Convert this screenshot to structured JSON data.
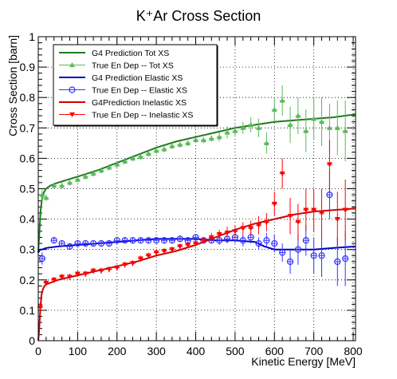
{
  "chart_data": {
    "type": "scatter",
    "title": "K⁺Ar Cross Section",
    "xlabel": "Kinetic Energy [MeV]",
    "ylabel": "Cross Section [barn]",
    "xlim": [
      0,
      806
    ],
    "ylim": [
      0,
      1
    ],
    "x_ticks": [
      "0",
      "100",
      "200",
      "300",
      "400",
      "500",
      "600",
      "700",
      "800"
    ],
    "y_ticks": [
      "0",
      "0.1",
      "0.2",
      "0.3",
      "0.4",
      "0.5",
      "0.6",
      "0.7",
      "0.8",
      "0.9",
      "1"
    ],
    "grid": true,
    "legend_position": "top-left",
    "series": [
      {
        "name": "G4 Prediction Tot XS",
        "kind": "line",
        "color": "#1e7a1e",
        "x": [
          0,
          3,
          6,
          10,
          15,
          20,
          30,
          50,
          100,
          150,
          200,
          250,
          300,
          350,
          400,
          450,
          500,
          550,
          600,
          650,
          700,
          750,
          806
        ],
        "y": [
          0.29,
          0.36,
          0.43,
          0.47,
          0.49,
          0.5,
          0.51,
          0.52,
          0.54,
          0.56,
          0.585,
          0.61,
          0.635,
          0.655,
          0.67,
          0.685,
          0.7,
          0.71,
          0.72,
          0.725,
          0.73,
          0.735,
          0.745
        ]
      },
      {
        "name": "True En Dep -- Tot XS",
        "kind": "points",
        "marker": "triangle-up",
        "color": "#5cb85c",
        "x": [
          10,
          20,
          40,
          60,
          80,
          100,
          120,
          140,
          160,
          180,
          200,
          220,
          240,
          260,
          280,
          300,
          320,
          340,
          360,
          380,
          400,
          420,
          440,
          460,
          480,
          500,
          520,
          540,
          560,
          580,
          600,
          620,
          640,
          660,
          680,
          700,
          720,
          740,
          760,
          780
        ],
        "y": [
          0.48,
          0.47,
          0.51,
          0.51,
          0.52,
          0.53,
          0.54,
          0.55,
          0.56,
          0.57,
          0.58,
          0.59,
          0.6,
          0.605,
          0.615,
          0.625,
          0.63,
          0.64,
          0.645,
          0.65,
          0.66,
          0.66,
          0.665,
          0.67,
          0.685,
          0.69,
          0.7,
          0.71,
          0.7,
          0.65,
          0.76,
          0.79,
          0.71,
          0.74,
          0.69,
          0.73,
          0.72,
          0.7,
          0.7,
          0.69
        ],
        "err": [
          0.02,
          0.01,
          0.01,
          0.01,
          0.01,
          0.01,
          0.01,
          0.01,
          0.01,
          0.01,
          0.01,
          0.01,
          0.01,
          0.01,
          0.01,
          0.01,
          0.01,
          0.01,
          0.01,
          0.01,
          0.01,
          0.01,
          0.01,
          0.015,
          0.02,
          0.02,
          0.02,
          0.025,
          0.03,
          0.035,
          0.04,
          0.05,
          0.06,
          0.06,
          0.07,
          0.07,
          0.08,
          0.08,
          0.09,
          0.1
        ]
      },
      {
        "name": "G4 Prediction Elastic XS",
        "kind": "line",
        "color": "#0000c8",
        "x": [
          0,
          5,
          10,
          20,
          50,
          100,
          150,
          200,
          250,
          300,
          350,
          400,
          450,
          500,
          550,
          575,
          600,
          650,
          700,
          750,
          806
        ],
        "y": [
          0.29,
          0.3,
          0.3,
          0.305,
          0.31,
          0.315,
          0.32,
          0.325,
          0.33,
          0.335,
          0.335,
          0.335,
          0.33,
          0.33,
          0.325,
          0.31,
          0.3,
          0.3,
          0.3,
          0.305,
          0.31
        ]
      },
      {
        "name": "True En Dep -- Elastic XS",
        "kind": "points",
        "marker": "open-circle",
        "color": "#3333ff",
        "x": [
          10,
          40,
          60,
          80,
          100,
          120,
          140,
          160,
          180,
          200,
          220,
          240,
          260,
          280,
          300,
          320,
          340,
          360,
          380,
          400,
          420,
          440,
          460,
          480,
          500,
          520,
          540,
          560,
          580,
          600,
          620,
          640,
          660,
          680,
          700,
          720,
          740,
          760,
          780
        ],
        "y": [
          0.27,
          0.33,
          0.32,
          0.31,
          0.32,
          0.32,
          0.32,
          0.32,
          0.32,
          0.33,
          0.33,
          0.33,
          0.33,
          0.33,
          0.33,
          0.33,
          0.33,
          0.335,
          0.33,
          0.34,
          0.33,
          0.33,
          0.33,
          0.335,
          0.34,
          0.33,
          0.34,
          0.32,
          0.33,
          0.32,
          0.29,
          0.26,
          0.3,
          0.33,
          0.28,
          0.28,
          0.48,
          0.26,
          0.27
        ],
        "err": [
          0.02,
          0.01,
          0.01,
          0.01,
          0.01,
          0.01,
          0.01,
          0.01,
          0.01,
          0.01,
          0.01,
          0.01,
          0.01,
          0.01,
          0.01,
          0.01,
          0.01,
          0.01,
          0.01,
          0.01,
          0.01,
          0.01,
          0.015,
          0.015,
          0.02,
          0.02,
          0.02,
          0.02,
          0.025,
          0.03,
          0.03,
          0.04,
          0.05,
          0.05,
          0.06,
          0.07,
          0.08,
          0.08,
          0.09
        ]
      },
      {
        "name": "G4Prediction Inelastic XS",
        "kind": "line",
        "color": "#cc0000",
        "x": [
          0,
          2,
          5,
          8,
          12,
          16,
          20,
          30,
          50,
          100,
          150,
          200,
          250,
          300,
          350,
          400,
          450,
          500,
          550,
          600,
          650,
          700,
          750,
          806
        ],
        "y": [
          0.0,
          0.03,
          0.1,
          0.15,
          0.17,
          0.18,
          0.185,
          0.19,
          0.2,
          0.215,
          0.23,
          0.245,
          0.26,
          0.28,
          0.295,
          0.315,
          0.34,
          0.365,
          0.385,
          0.4,
          0.415,
          0.425,
          0.43,
          0.435
        ]
      },
      {
        "name": "True En Dep -- Inelastic XS",
        "kind": "points",
        "marker": "triangle-down",
        "color": "#ff0000",
        "x": [
          5,
          20,
          40,
          60,
          80,
          100,
          120,
          140,
          160,
          180,
          200,
          220,
          240,
          260,
          280,
          300,
          320,
          340,
          360,
          380,
          400,
          420,
          440,
          460,
          480,
          500,
          520,
          540,
          560,
          580,
          600,
          620,
          640,
          660,
          680,
          700,
          720,
          740,
          760,
          780
        ],
        "y": [
          0.11,
          0.19,
          0.2,
          0.21,
          0.21,
          0.22,
          0.22,
          0.23,
          0.23,
          0.235,
          0.24,
          0.25,
          0.255,
          0.27,
          0.28,
          0.29,
          0.295,
          0.3,
          0.31,
          0.315,
          0.32,
          0.33,
          0.34,
          0.35,
          0.355,
          0.36,
          0.37,
          0.37,
          0.38,
          0.39,
          0.45,
          0.55,
          0.41,
          0.39,
          0.43,
          0.43,
          0.42,
          0.58,
          0.4,
          0.43
        ],
        "err": [
          0.015,
          0.01,
          0.01,
          0.01,
          0.01,
          0.01,
          0.01,
          0.01,
          0.01,
          0.01,
          0.01,
          0.01,
          0.01,
          0.01,
          0.01,
          0.01,
          0.01,
          0.01,
          0.01,
          0.01,
          0.01,
          0.01,
          0.015,
          0.015,
          0.02,
          0.02,
          0.02,
          0.025,
          0.03,
          0.03,
          0.04,
          0.05,
          0.06,
          0.06,
          0.07,
          0.07,
          0.08,
          0.08,
          0.09,
          0.1
        ]
      }
    ]
  }
}
